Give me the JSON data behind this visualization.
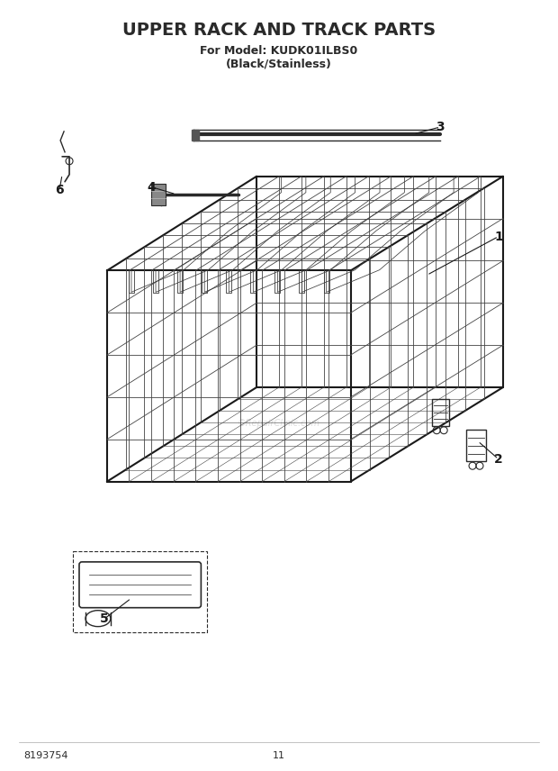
{
  "title": "UPPER RACK AND TRACK PARTS",
  "subtitle1": "For Model: KUDK01ILBS0",
  "subtitle2": "(Black/Stainless)",
  "doc_number": "8193754",
  "page_number": "11",
  "bg": "#ffffff",
  "lc": "#2a2a2a",
  "wc": "#444444",
  "title_fs": 14,
  "sub_fs": 9,
  "lbl_fs": 10,
  "foot_fs": 8
}
